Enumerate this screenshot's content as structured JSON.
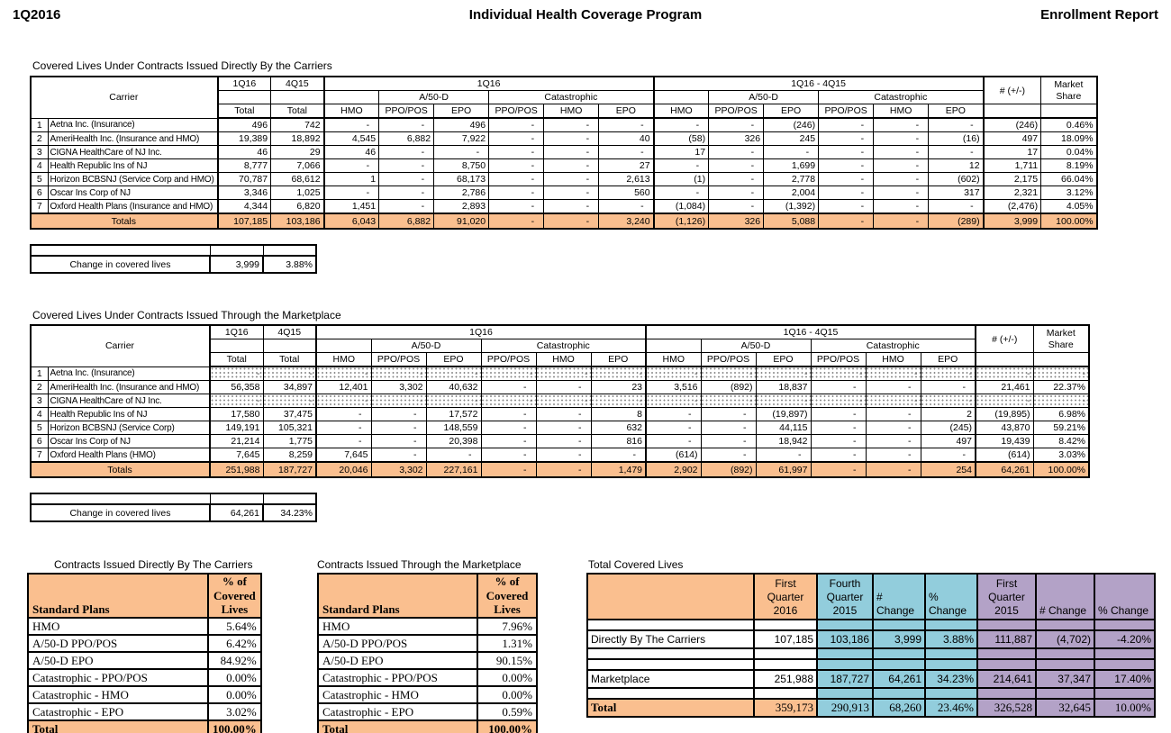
{
  "page": {
    "quarter": "1Q2016",
    "title": "Individual Health Coverage Program",
    "report": "Enrollment Report"
  },
  "colors": {
    "orange": "#FABF8F",
    "teal": "#92CDDC",
    "purple": "#B3A2C7"
  },
  "main_header": {
    "carrier": "Carrier",
    "col_1q16": "1Q16",
    "col_4q15": "4Q15",
    "total": "Total",
    "group_current": "1Q16",
    "group_diff": "1Q16 - 4Q15",
    "sub_a50d": "A/50-D",
    "sub_catastrophic": "Catastrophic",
    "plan_cols": [
      "HMO",
      "PPO/POS",
      "EPO",
      "PPO/POS",
      "HMO",
      "EPO"
    ],
    "change_col": "# (+/-)",
    "market_share_lines": [
      "Market",
      "Share"
    ]
  },
  "main_tables": [
    {
      "title": "Covered Lives Under Contracts Issued Directly By the Carriers",
      "rows": [
        {
          "num": "1",
          "carrier": "Aetna Inc. (Insurance)",
          "values": [
            "496",
            "742",
            "-",
            "-",
            "496",
            "-",
            "-",
            "-",
            "-",
            "-",
            "(246)",
            "-",
            "-",
            "-",
            "(246)",
            "0.46%"
          ]
        },
        {
          "num": "2",
          "carrier": "AmeriHealth Inc. (Insurance and HMO)",
          "values": [
            "19,389",
            "18,892",
            "4,545",
            "6,882",
            "7,922",
            "-",
            "-",
            "40",
            "(58)",
            "326",
            "245",
            "-",
            "-",
            "(16)",
            "497",
            "18.09%"
          ]
        },
        {
          "num": "3",
          "carrier": "CIGNA HealthCare of NJ Inc.",
          "values": [
            "46",
            "29",
            "46",
            "-",
            "-",
            "-",
            "-",
            "-",
            "17",
            "-",
            "-",
            "-",
            "-",
            "-",
            "17",
            "0.04%"
          ]
        },
        {
          "num": "4",
          "carrier": "Health Republic Ins of NJ",
          "values": [
            "8,777",
            "7,066",
            "-",
            "-",
            "8,750",
            "-",
            "-",
            "27",
            "-",
            "-",
            "1,699",
            "-",
            "-",
            "12",
            "1,711",
            "8.19%"
          ]
        },
        {
          "num": "5",
          "carrier": "Horizon BCBSNJ (Service Corp and HMO)",
          "values": [
            "70,787",
            "68,612",
            "1",
            "-",
            "68,173",
            "-",
            "-",
            "2,613",
            "(1)",
            "-",
            "2,778",
            "-",
            "-",
            "(602)",
            "2,175",
            "66.04%"
          ]
        },
        {
          "num": "6",
          "carrier": "Oscar Ins Corp of NJ",
          "values": [
            "3,346",
            "1,025",
            "-",
            "-",
            "2,786",
            "-",
            "-",
            "560",
            "-",
            "-",
            "2,004",
            "-",
            "-",
            "317",
            "2,321",
            "3.12%"
          ]
        },
        {
          "num": "7",
          "carrier": "Oxford Health Plans (Insurance and HMO)",
          "values": [
            "4,344",
            "6,820",
            "1,451",
            "-",
            "2,893",
            "-",
            "-",
            "-",
            "(1,084)",
            "-",
            "(1,392)",
            "-",
            "-",
            "-",
            "(2,476)",
            "4.05%"
          ]
        }
      ],
      "totals_label": "Totals",
      "totals": [
        "107,185",
        "103,186",
        "6,043",
        "6,882",
        "91,020",
        "-",
        "-",
        "3,240",
        "(1,126)",
        "326",
        "5,088",
        "-",
        "-",
        "(289)",
        "3,999",
        "100.00%"
      ],
      "change_label": "Change in covered lives",
      "change_value": "3,999",
      "change_pct": "3.88%"
    },
    {
      "title": "Covered Lives Under Contracts Issued Through the Marketplace",
      "rows": [
        {
          "num": "1",
          "carrier": "Aetna Inc. (Insurance)",
          "masked": true
        },
        {
          "num": "2",
          "carrier": "AmeriHealth Inc. (Insurance and HMO)",
          "values": [
            "56,358",
            "34,897",
            "12,401",
            "3,302",
            "40,632",
            "-",
            "-",
            "23",
            "3,516",
            "(892)",
            "18,837",
            "-",
            "-",
            "-",
            "21,461",
            "22.37%"
          ]
        },
        {
          "num": "3",
          "carrier": "CIGNA HealthCare of NJ Inc.",
          "masked": true
        },
        {
          "num": "4",
          "carrier": "Health Republic Ins of NJ",
          "values": [
            "17,580",
            "37,475",
            "-",
            "-",
            "17,572",
            "-",
            "-",
            "8",
            "-",
            "-",
            "(19,897)",
            "-",
            "-",
            "2",
            "(19,895)",
            "6.98%"
          ]
        },
        {
          "num": "5",
          "carrier": "Horizon BCBSNJ (Service Corp)",
          "values": [
            "149,191",
            "105,321",
            "-",
            "-",
            "148,559",
            "-",
            "-",
            "632",
            "-",
            "-",
            "44,115",
            "-",
            "-",
            "(245)",
            "43,870",
            "59.21%"
          ]
        },
        {
          "num": "6",
          "carrier": "Oscar Ins Corp of NJ",
          "values": [
            "21,214",
            "1,775",
            "-",
            "-",
            "20,398",
            "-",
            "-",
            "816",
            "-",
            "-",
            "18,942",
            "-",
            "-",
            "497",
            "19,439",
            "8.42%"
          ]
        },
        {
          "num": "7",
          "carrier": "Oxford Health Plans (HMO)",
          "values": [
            "7,645",
            "8,259",
            "7,645",
            "-",
            "-",
            "-",
            "-",
            "-",
            "(614)",
            "-",
            "-",
            "-",
            "-",
            "-",
            "(614)",
            "3.03%"
          ]
        }
      ],
      "totals_label": "Totals",
      "totals": [
        "251,988",
        "187,727",
        "20,046",
        "3,302",
        "227,161",
        "-",
        "-",
        "1,479",
        "2,902",
        "(892)",
        "61,997",
        "-",
        "-",
        "254",
        "64,261",
        "100.00%"
      ],
      "change_label": "Change in covered lives",
      "change_value": "64,261",
      "change_pct": "34.23%"
    }
  ],
  "plan_tables": [
    {
      "title": "Contracts Issued Directly By The Carriers",
      "header_label": "Standard Plans",
      "header_pct_lines": [
        "% of",
        "Covered",
        "Lives"
      ],
      "rows": [
        [
          "HMO",
          "5.64%"
        ],
        [
          "A/50-D PPO/POS",
          "6.42%"
        ],
        [
          "A/50-D EPO",
          "84.92%"
        ],
        [
          "Catastrophic - PPO/POS",
          "0.00%"
        ],
        [
          "Catastrophic - HMO",
          "0.00%"
        ],
        [
          "Catastrophic - EPO",
          "3.02%"
        ]
      ],
      "total": [
        "Total",
        "100.00%"
      ]
    },
    {
      "title": "Contracts Issued Through the Marketplace",
      "header_label": "Standard Plans",
      "header_pct_lines": [
        "% of",
        "Covered",
        "Lives"
      ],
      "rows": [
        [
          "HMO",
          "7.96%"
        ],
        [
          "A/50-D PPO/POS",
          "1.31%"
        ],
        [
          "A/50-D EPO",
          "90.15%"
        ],
        [
          "Catastrophic - PPO/POS",
          "0.00%"
        ],
        [
          "Catastrophic - HMO",
          "0.00%"
        ],
        [
          "Catastrophic - EPO",
          "0.59%"
        ]
      ],
      "total": [
        "Total",
        "100.00%"
      ]
    }
  ],
  "summary": {
    "title": "Total Covered Lives",
    "headers": [
      {
        "lines": [
          ""
        ],
        "color": "orange"
      },
      {
        "lines": [
          "First Quarter",
          "2016"
        ],
        "color": "orange"
      },
      {
        "lines": [
          "Fourth",
          "Quarter",
          "2015"
        ],
        "color": "teal"
      },
      {
        "lines": [
          "# Change"
        ],
        "color": "teal",
        "left": true
      },
      {
        "lines": [
          "% Change"
        ],
        "color": "teal",
        "left": true
      },
      {
        "lines": [
          "First",
          "Quarter",
          "2015"
        ],
        "color": "purple"
      },
      {
        "lines": [
          "# Change"
        ],
        "color": "purple",
        "left": true
      },
      {
        "lines": [
          "% Change"
        ],
        "color": "purple",
        "left": true
      }
    ],
    "rows": [
      {
        "label": "Directly By The Carriers",
        "values": [
          "107,185",
          "103,186",
          "3,999",
          "3.88%",
          "111,887",
          "(4,702)",
          "-4.20%"
        ]
      },
      {
        "label": "Marketplace",
        "values": [
          "251,988",
          "187,727",
          "64,261",
          "34.23%",
          "214,641",
          "37,347",
          "17.40%"
        ]
      }
    ],
    "total": {
      "label": "Total",
      "values": [
        "359,173",
        "290,913",
        "68,260",
        "23.46%",
        "326,528",
        "32,645",
        "10.00%"
      ]
    }
  }
}
